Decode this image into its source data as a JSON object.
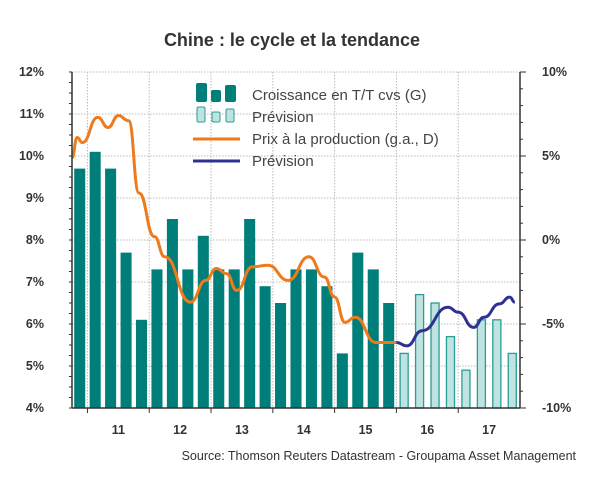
{
  "chart_data": {
    "type": "bar+line",
    "title": "Chine : le cycle et la tendance",
    "source": "Source: Thomson Reuters Datastream - Groupama Asset Management",
    "left_axis": {
      "ylim": [
        4,
        12
      ],
      "ticks": [
        "4%",
        "5%",
        "6%",
        "7%",
        "8%",
        "9%",
        "10%",
        "11%",
        "12%"
      ]
    },
    "right_axis": {
      "ylim": [
        -10,
        10
      ],
      "ticks": [
        "-10%",
        "-5%",
        "0%",
        "5%",
        "10%"
      ]
    },
    "x_tick_labels": [
      "11",
      "12",
      "13",
      "14",
      "15",
      "16",
      "17"
    ],
    "grid": true,
    "legend_placement": "top-center",
    "categories": [
      "2010Q4",
      "2011Q1",
      "2011Q2",
      "2011Q3",
      "2011Q4",
      "2012Q1",
      "2012Q2",
      "2012Q3",
      "2012Q4",
      "2013Q1",
      "2013Q2",
      "2013Q3",
      "2013Q4",
      "2014Q1",
      "2014Q2",
      "2014Q3",
      "2014Q4",
      "2015Q1",
      "2015Q2",
      "2015Q3",
      "2015Q4",
      "2016Q1",
      "2016Q2",
      "2016Q3",
      "2016Q4",
      "2017Q1",
      "2017Q2",
      "2017Q3",
      "2017Q4"
    ],
    "series": [
      {
        "name": "Croissance en T/T cvs (G)",
        "type": "bar",
        "axis": "left",
        "color": "#007f7a",
        "values": [
          9.7,
          10.1,
          9.7,
          7.7,
          6.1,
          7.3,
          8.5,
          7.3,
          8.1,
          7.3,
          7.3,
          8.5,
          6.9,
          6.5,
          7.3,
          7.3,
          6.9,
          5.3,
          7.7,
          7.3,
          6.5,
          null,
          null,
          null,
          null,
          null,
          null,
          null,
          null
        ]
      },
      {
        "name": "Prévision",
        "type": "bar",
        "axis": "left",
        "color": "#bfe3e0",
        "values": [
          null,
          null,
          null,
          null,
          null,
          null,
          null,
          null,
          null,
          null,
          null,
          null,
          null,
          null,
          null,
          null,
          null,
          null,
          null,
          null,
          null,
          5.3,
          6.7,
          6.5,
          5.7,
          4.9,
          6.1,
          6.1,
          5.3
        ]
      },
      {
        "name": "Prix à la production (g.a., D)",
        "type": "line",
        "axis": "right",
        "color": "#f07a1a",
        "x": [
          "2010-10",
          "2010-11",
          "2010-12",
          "2011-03",
          "2011-05",
          "2011-07",
          "2011-09",
          "2011-11",
          "2012-02",
          "2012-04",
          "2012-09",
          "2012-12",
          "2013-02",
          "2013-04",
          "2013-06",
          "2013-09",
          "2013-12",
          "2014-04",
          "2014-08",
          "2014-11",
          "2015-01",
          "2015-03",
          "2015-05",
          "2015-09",
          "2016-01"
        ],
        "y": [
          4.9,
          6.1,
          5.8,
          7.3,
          6.7,
          7.4,
          7.1,
          2.8,
          0.2,
          -1.0,
          -3.7,
          -2.4,
          -1.7,
          -2.0,
          -3.0,
          -1.6,
          -1.5,
          -2.4,
          -1.0,
          -2.2,
          -3.4,
          -4.9,
          -4.6,
          -6.1,
          -6.1
        ]
      },
      {
        "name": "Prévision",
        "type": "line",
        "axis": "right",
        "color": "#2e3192",
        "x": [
          "2016-01",
          "2016-03",
          "2016-06",
          "2016-11",
          "2017-01",
          "2017-04",
          "2017-06",
          "2017-09",
          "2017-11",
          "2017-12"
        ],
        "y": [
          -6.1,
          -6.3,
          -5.4,
          -4.0,
          -4.3,
          -5.2,
          -4.6,
          -3.8,
          -3.4,
          -3.7
        ]
      }
    ]
  }
}
